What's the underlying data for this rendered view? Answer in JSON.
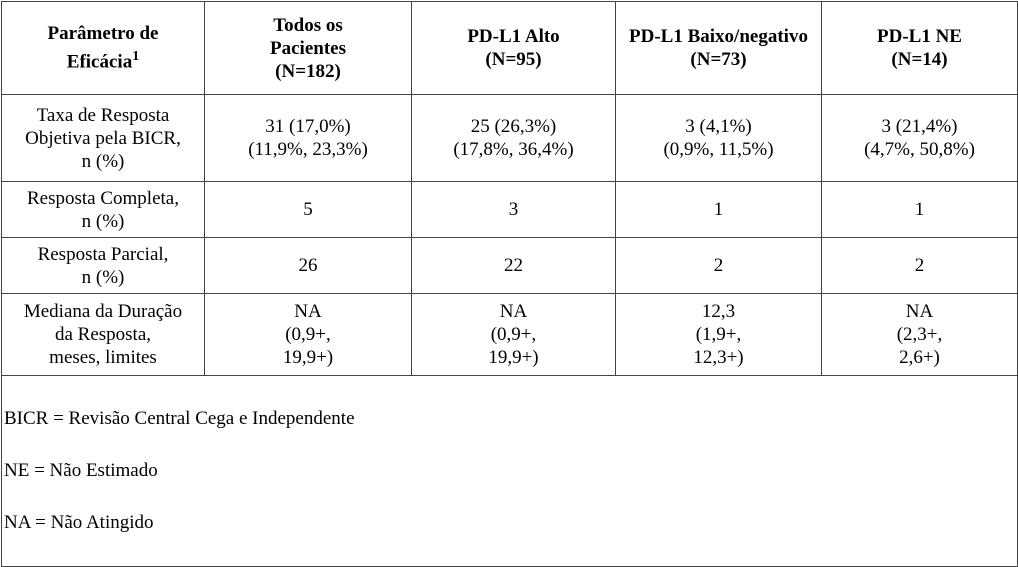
{
  "table": {
    "first_column_header": "Parâmetro de\nEficácia",
    "first_column_note": "1",
    "columns": [
      "Todos os\nPacientes\n(N=182)",
      "PD-L1 Alto\n(N=95)",
      "PD-L1 Baixo/negativo\n(N=73)",
      "PD-L1 NE\n(N=14)"
    ],
    "rows": [
      [
        "Taxa de Resposta\nObjetiva pela BICR,\nn (%)",
        "31 (17,0%)\n(11,9%, 23,3%)",
        "25 (26,3%)\n(17,8%, 36,4%)",
        "3 (4,1%)\n(0,9%, 11,5%)",
        "3 (21,4%)\n(4,7%, 50,8%)"
      ],
      [
        "Resposta Completa,\nn (%)",
        "5",
        "3",
        "1",
        "1"
      ],
      [
        "Resposta Parcial,\nn (%)",
        "26",
        "22",
        "2",
        "2"
      ],
      [
        "Mediana da Duração\nda Resposta,\nmeses, limites",
        "NA\n(0,9+,\n19,9+)",
        "NA\n(0,9+,\n19,9+)",
        "12,3\n(1,9+,\n12,3+)",
        "NA\n(2,3+,\n2,6+)"
      ]
    ],
    "footnotes": [
      "BICR = Revisão Central Cega e Independente",
      "NE = Não Estimado",
      "NA = Não Atingido"
    ]
  }
}
